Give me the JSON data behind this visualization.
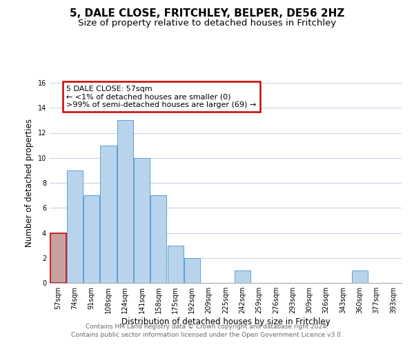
{
  "title": "5, DALE CLOSE, FRITCHLEY, BELPER, DE56 2HZ",
  "subtitle": "Size of property relative to detached houses in Fritchley",
  "xlabel": "Distribution of detached houses by size in Fritchley",
  "ylabel": "Number of detached properties",
  "bin_labels": [
    "57sqm",
    "74sqm",
    "91sqm",
    "108sqm",
    "124sqm",
    "141sqm",
    "158sqm",
    "175sqm",
    "192sqm",
    "209sqm",
    "225sqm",
    "242sqm",
    "259sqm",
    "276sqm",
    "293sqm",
    "309sqm",
    "326sqm",
    "343sqm",
    "360sqm",
    "377sqm",
    "393sqm"
  ],
  "bar_values": [
    4,
    9,
    7,
    11,
    13,
    10,
    7,
    3,
    2,
    0,
    0,
    1,
    0,
    0,
    0,
    0,
    0,
    0,
    1,
    0,
    0
  ],
  "bar_color": "#b8d4ec",
  "bar_edge_color": "#5a9fd4",
  "highlight_bar_index": 0,
  "highlight_color": "#c8a0a0",
  "highlight_edge_color": "#cc0000",
  "annotation_box_text": "5 DALE CLOSE: 57sqm\n← <1% of detached houses are smaller (0)\n>99% of semi-detached houses are larger (69) →",
  "annotation_box_edge_color": "#cc0000",
  "annotation_box_face_color": "#ffffff",
  "ylim": [
    0,
    16
  ],
  "yticks": [
    0,
    2,
    4,
    6,
    8,
    10,
    12,
    14,
    16
  ],
  "background_color": "#ffffff",
  "grid_color": "#c8d4e4",
  "footer_line1": "Contains HM Land Registry data © Crown copyright and database right 2024.",
  "footer_line2": "Contains public sector information licensed under the Open Government Licence v3.0.",
  "title_fontsize": 11,
  "subtitle_fontsize": 9.5,
  "axis_label_fontsize": 8.5,
  "tick_fontsize": 7,
  "annotation_fontsize": 8,
  "footer_fontsize": 6.5
}
